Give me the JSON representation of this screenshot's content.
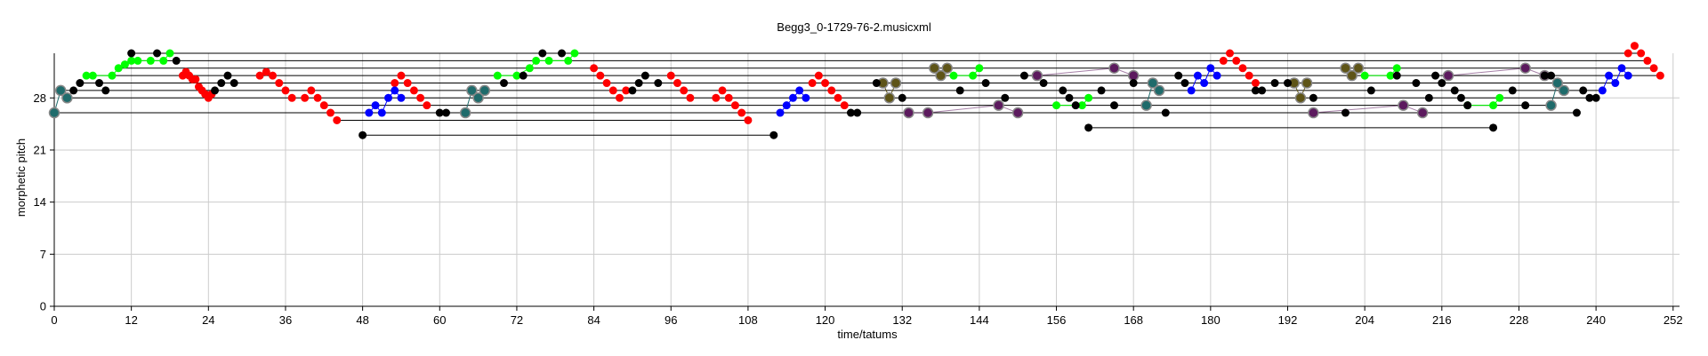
{
  "chart_data": {
    "type": "scatter",
    "title": "Begg3_0-1729-76-2.musicxml",
    "xlabel": "time/tatums",
    "ylabel": "morphetic pitch",
    "xlim": [
      0,
      253
    ],
    "ylim": [
      0,
      34
    ],
    "xticks": [
      "0",
      "12",
      "24",
      "36",
      "48",
      "60",
      "72",
      "84",
      "96",
      "108",
      "120",
      "132",
      "144",
      "156",
      "168",
      "180",
      "192",
      "204",
      "216",
      "228",
      "240",
      "252"
    ],
    "yticks": [
      "0",
      "7",
      "14",
      "21",
      "28"
    ],
    "grid": true,
    "colors": {
      "red": "#ff0000",
      "green": "#00ff00",
      "blue": "#0000ff",
      "black": "#000000",
      "teal": "#1f6b6b",
      "olive": "#5e5417",
      "purple": "#5c1a5e",
      "grid": "#cccccc",
      "connector": "#000000"
    },
    "series": [
      {
        "color": "red",
        "points": [
          [
            20,
            31
          ],
          [
            20.5,
            31.5
          ],
          [
            21,
            31
          ],
          [
            21.5,
            30.5
          ],
          [
            22,
            30.5
          ],
          [
            22.5,
            29.5
          ],
          [
            23,
            29
          ],
          [
            23.5,
            28.5
          ],
          [
            24,
            28
          ],
          [
            24.5,
            28.5
          ]
        ]
      },
      {
        "color": "red",
        "points": [
          [
            32,
            31
          ],
          [
            33,
            31.5
          ],
          [
            34,
            31
          ],
          [
            35,
            30
          ],
          [
            36,
            29
          ],
          [
            37,
            28
          ]
        ]
      },
      {
        "color": "red",
        "points": [
          [
            39,
            28
          ],
          [
            40,
            29
          ],
          [
            41,
            28
          ],
          [
            42,
            27
          ],
          [
            43,
            26
          ],
          [
            44,
            25
          ]
        ]
      },
      {
        "color": "red",
        "points": [
          [
            53,
            30
          ],
          [
            54,
            31
          ],
          [
            55,
            30
          ],
          [
            56,
            29
          ],
          [
            57,
            28
          ],
          [
            58,
            27
          ]
        ]
      },
      {
        "color": "red",
        "points": [
          [
            84,
            32
          ],
          [
            85,
            31
          ],
          [
            86,
            30
          ],
          [
            87,
            29
          ],
          [
            88,
            28
          ],
          [
            89,
            29
          ]
        ]
      },
      {
        "color": "red",
        "points": [
          [
            96,
            31
          ],
          [
            97,
            30
          ],
          [
            98,
            29
          ],
          [
            99,
            28
          ]
        ]
      },
      {
        "color": "red",
        "points": [
          [
            103,
            28
          ],
          [
            104,
            29
          ],
          [
            105,
            28
          ],
          [
            106,
            27
          ],
          [
            107,
            26
          ],
          [
            108,
            25
          ]
        ]
      },
      {
        "color": "red",
        "points": [
          [
            118,
            30
          ],
          [
            119,
            31
          ],
          [
            120,
            30
          ],
          [
            121,
            29
          ],
          [
            122,
            28
          ],
          [
            123,
            27
          ]
        ]
      },
      {
        "color": "red",
        "points": [
          [
            182,
            33
          ],
          [
            183,
            34
          ],
          [
            184,
            33
          ],
          [
            185,
            32
          ],
          [
            186,
            31
          ],
          [
            187,
            30
          ]
        ]
      },
      {
        "color": "red",
        "points": [
          [
            245,
            34
          ],
          [
            246,
            35
          ],
          [
            247,
            34
          ],
          [
            248,
            33
          ],
          [
            249,
            32
          ],
          [
            250,
            31
          ]
        ]
      },
      {
        "color": "green",
        "points": [
          [
            5,
            31
          ],
          [
            6,
            31
          ],
          [
            9,
            31
          ],
          [
            10,
            32
          ],
          [
            11,
            32.5
          ],
          [
            12,
            33
          ],
          [
            13,
            33
          ],
          [
            15,
            33
          ],
          [
            17,
            33
          ],
          [
            18,
            34
          ]
        ]
      },
      {
        "color": "green",
        "points": [
          [
            69,
            31
          ],
          [
            72,
            31
          ],
          [
            74,
            32
          ],
          [
            75,
            33
          ],
          [
            77,
            33
          ],
          [
            80,
            33
          ],
          [
            81,
            34
          ]
        ]
      },
      {
        "color": "green",
        "points": [
          [
            140,
            31
          ],
          [
            143,
            31
          ],
          [
            144,
            32
          ]
        ]
      },
      {
        "color": "green",
        "points": [
          [
            156,
            27
          ],
          [
            160,
            27
          ],
          [
            161,
            28
          ]
        ]
      },
      {
        "color": "green",
        "points": [
          [
            204,
            31
          ],
          [
            208,
            31
          ],
          [
            209,
            32
          ]
        ]
      },
      {
        "color": "green",
        "points": [
          [
            220,
            27
          ],
          [
            224,
            27
          ],
          [
            225,
            28
          ]
        ]
      },
      {
        "color": "blue",
        "points": [
          [
            49,
            26
          ],
          [
            50,
            27
          ],
          [
            51,
            26
          ],
          [
            52,
            28
          ],
          [
            53,
            29
          ],
          [
            54,
            28
          ]
        ]
      },
      {
        "color": "blue",
        "points": [
          [
            113,
            26
          ],
          [
            114,
            27
          ],
          [
            115,
            28
          ],
          [
            116,
            29
          ],
          [
            117,
            28
          ]
        ]
      },
      {
        "color": "blue",
        "points": [
          [
            177,
            29
          ],
          [
            178,
            31
          ],
          [
            179,
            30
          ],
          [
            180,
            32
          ],
          [
            181,
            31
          ]
        ]
      },
      {
        "color": "blue",
        "points": [
          [
            241,
            29
          ],
          [
            242,
            31
          ],
          [
            243,
            30
          ],
          [
            244,
            32
          ],
          [
            245,
            31
          ]
        ]
      },
      {
        "color": "teal",
        "points": [
          [
            0,
            26
          ],
          [
            1,
            29
          ],
          [
            2,
            28
          ]
        ]
      },
      {
        "color": "teal",
        "points": [
          [
            64,
            26
          ],
          [
            65,
            29
          ],
          [
            66,
            28
          ],
          [
            67,
            29
          ]
        ]
      },
      {
        "color": "teal",
        "points": [
          [
            170,
            27
          ],
          [
            171,
            30
          ],
          [
            172,
            29
          ]
        ]
      },
      {
        "color": "teal",
        "points": [
          [
            233,
            27
          ],
          [
            234,
            30
          ],
          [
            235,
            29
          ]
        ]
      },
      {
        "color": "olive",
        "points": [
          [
            129,
            30
          ],
          [
            130,
            28
          ],
          [
            131,
            30
          ]
        ]
      },
      {
        "color": "olive",
        "points": [
          [
            137,
            32
          ],
          [
            138,
            31
          ],
          [
            139,
            32
          ]
        ]
      },
      {
        "color": "olive",
        "points": [
          [
            193,
            30
          ],
          [
            194,
            28
          ],
          [
            195,
            30
          ]
        ]
      },
      {
        "color": "olive",
        "points": [
          [
            201,
            32
          ],
          [
            202,
            31
          ],
          [
            203,
            32
          ]
        ]
      },
      {
        "color": "purple",
        "points": [
          [
            133,
            26
          ],
          [
            136,
            26
          ],
          [
            147,
            27
          ],
          [
            150,
            26
          ]
        ]
      },
      {
        "color": "purple",
        "points": [
          [
            153,
            31
          ],
          [
            165,
            32
          ],
          [
            168,
            31
          ]
        ]
      },
      {
        "color": "purple",
        "points": [
          [
            196,
            26
          ],
          [
            210,
            27
          ],
          [
            213,
            26
          ]
        ]
      },
      {
        "color": "purple",
        "points": [
          [
            217,
            31
          ],
          [
            229,
            32
          ],
          [
            232,
            31
          ]
        ]
      },
      {
        "color": "black",
        "points": [
          [
            3,
            29
          ],
          [
            4,
            30
          ],
          [
            7,
            30
          ],
          [
            8,
            29
          ],
          [
            12,
            34
          ],
          [
            16,
            34
          ],
          [
            19,
            33
          ],
          [
            25,
            29
          ],
          [
            26,
            30
          ],
          [
            27,
            31
          ],
          [
            28,
            30
          ]
        ]
      },
      {
        "color": "black",
        "points": [
          [
            48,
            23
          ],
          [
            60,
            26
          ],
          [
            61,
            26
          ],
          [
            70,
            30
          ],
          [
            73,
            31
          ],
          [
            76,
            34
          ],
          [
            79,
            34
          ],
          [
            90,
            29
          ],
          [
            91,
            30
          ],
          [
            92,
            31
          ],
          [
            94,
            30
          ]
        ]
      },
      {
        "color": "black",
        "points": [
          [
            112,
            23
          ],
          [
            124,
            26
          ],
          [
            125,
            26
          ],
          [
            128,
            30
          ],
          [
            132,
            28
          ],
          [
            141,
            29
          ],
          [
            145,
            30
          ],
          [
            148,
            28
          ],
          [
            151,
            31
          ]
        ]
      },
      {
        "color": "black",
        "points": [
          [
            154,
            30
          ],
          [
            157,
            29
          ],
          [
            158,
            28
          ],
          [
            159,
            27
          ],
          [
            161,
            24
          ],
          [
            163,
            29
          ],
          [
            165,
            27
          ],
          [
            168,
            30
          ],
          [
            173,
            26
          ],
          [
            175,
            31
          ],
          [
            176,
            30
          ]
        ]
      },
      {
        "color": "black",
        "points": [
          [
            187,
            29
          ],
          [
            188,
            29
          ],
          [
            190,
            30
          ],
          [
            192,
            30
          ],
          [
            196,
            28
          ],
          [
            201,
            26
          ],
          [
            205,
            29
          ],
          [
            209,
            31
          ],
          [
            212,
            30
          ],
          [
            214,
            28
          ],
          [
            215,
            31
          ]
        ]
      },
      {
        "color": "black",
        "points": [
          [
            216,
            30
          ],
          [
            218,
            29
          ],
          [
            219,
            28
          ],
          [
            220,
            27
          ],
          [
            224,
            24
          ],
          [
            227,
            29
          ],
          [
            229,
            27
          ],
          [
            232,
            31
          ],
          [
            233,
            31
          ],
          [
            237,
            26
          ],
          [
            238,
            29
          ],
          [
            239,
            28
          ],
          [
            240,
            28
          ]
        ]
      }
    ]
  }
}
